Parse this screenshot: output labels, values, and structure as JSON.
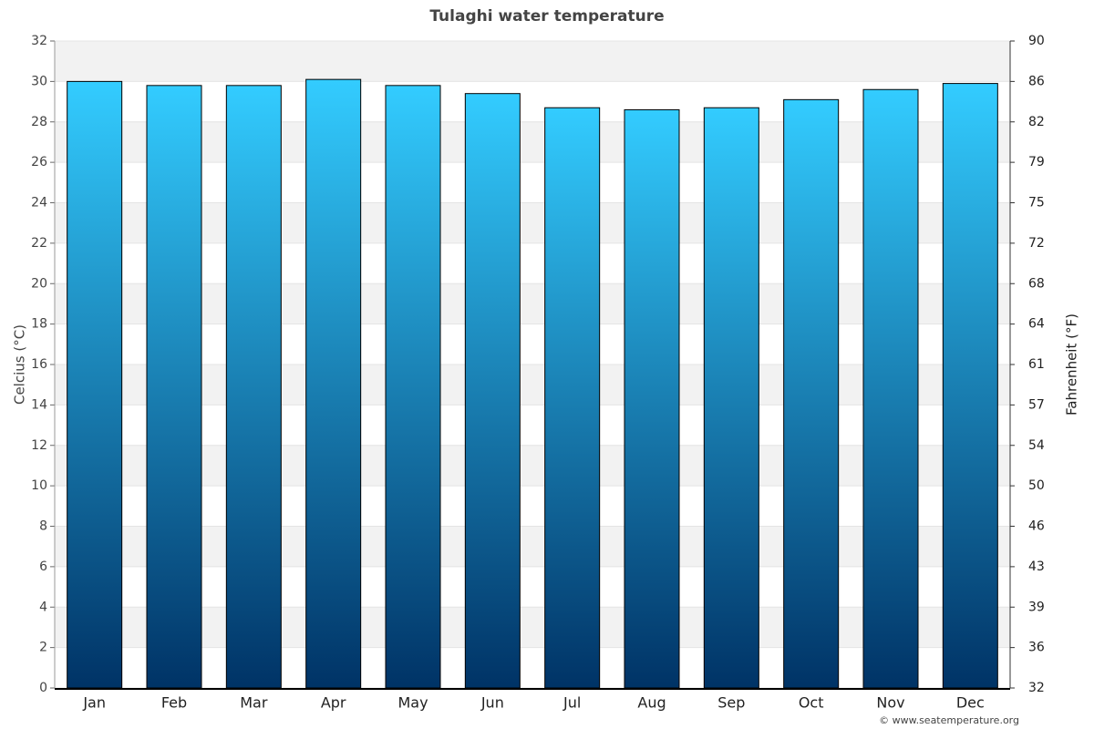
{
  "chart_data": {
    "type": "bar",
    "title": "Tulaghi water temperature",
    "categories": [
      "Jan",
      "Feb",
      "Mar",
      "Apr",
      "May",
      "Jun",
      "Jul",
      "Aug",
      "Sep",
      "Oct",
      "Nov",
      "Dec"
    ],
    "values": [
      30.0,
      29.8,
      29.8,
      30.1,
      29.8,
      29.4,
      28.7,
      28.6,
      28.7,
      29.1,
      29.6,
      29.9
    ],
    "color_top": "#33ccff",
    "color_bottom": "#003366",
    "ylabel": "Celcius (°C)",
    "y2label": "Fahrenheit (°F)",
    "ylim": [
      0,
      32
    ],
    "yticks": [
      0,
      2,
      4,
      6,
      8,
      10,
      12,
      14,
      16,
      18,
      20,
      22,
      24,
      26,
      28,
      30,
      32
    ],
    "y2lim": [
      32,
      89.6
    ],
    "y2ticks": [
      32,
      {
        "value": 35.6,
        "label": "36"
      },
      {
        "value": 39.2,
        "label": "39"
      },
      {
        "value": 42.8,
        "label": "43"
      },
      {
        "value": 46.4,
        "label": "46"
      },
      50,
      {
        "value": 53.6,
        "label": "54"
      },
      {
        "value": 57.2,
        "label": "57"
      },
      {
        "value": 60.8,
        "label": "61"
      },
      {
        "value": 64.4,
        "label": "64"
      },
      68,
      {
        "value": 71.6,
        "label": "72"
      },
      {
        "value": 75.2,
        "label": "75"
      },
      {
        "value": 78.8,
        "label": "79"
      },
      {
        "value": 82.4,
        "label": "82"
      },
      86,
      {
        "value": 89.6,
        "label": "90"
      }
    ],
    "grid": true,
    "credit": "© www.seatemperature.org"
  }
}
